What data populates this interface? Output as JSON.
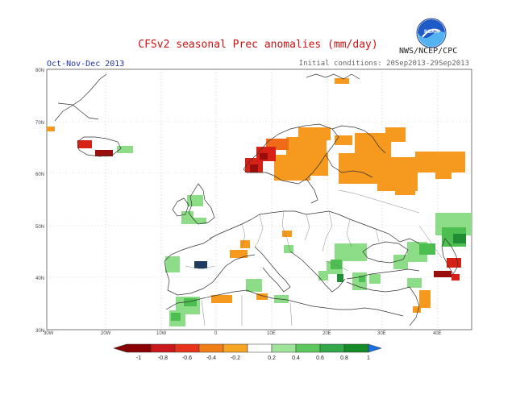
{
  "header": {
    "title": "CFSv2 seasonal Prec anomalies (mm/day)",
    "period": "Oct-Nov-Dec 2013",
    "initial_conditions": "Initial conditions: 20Sep2013-29Sep2013",
    "agency": "NWS/NCEP/CPC",
    "logo_text": "NOAA"
  },
  "map": {
    "lon_labels": [
      "30W",
      "20W",
      "10W",
      "0",
      "10E",
      "20E",
      "30E",
      "40E"
    ],
    "lat_labels": [
      "80N",
      "70N",
      "60N",
      "50N",
      "40N",
      "30N"
    ],
    "grid": "dotted",
    "projection": "lat-lon"
  },
  "colorbar": {
    "labels": [
      "-1",
      "-0.8",
      "-0.6",
      "-0.4",
      "-0.2",
      "0.2",
      "0.4",
      "0.6",
      "0.8",
      "1"
    ],
    "colors": [
      "#8b0000",
      "#c8181a",
      "#e8331c",
      "#f07d18",
      "#f6a623",
      "#ffffff",
      "#9ee49a",
      "#5cc85c",
      "#31a84a",
      "#158a25",
      "#1c6fe0"
    ]
  },
  "anomaly_colors": {
    "orange": "#f59a1e",
    "dark_orange": "#ef6b18",
    "red": "#d62216",
    "dark_red": "#9a0d0d",
    "light_green": "#8ddc88",
    "green": "#4cbf50",
    "dark_green": "#228b36",
    "navy": "#1e3a5f"
  }
}
